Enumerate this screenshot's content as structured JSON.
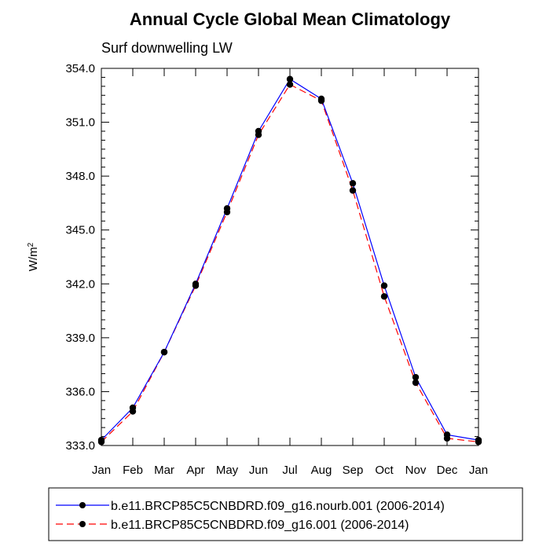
{
  "chart_data": {
    "type": "line",
    "title": "Annual Cycle Global Mean Climatology",
    "subtitle": "Surf downwelling LW",
    "xlabel": "",
    "ylabel": "W/m",
    "ylabel_superscript": "2",
    "ylim": [
      333.0,
      354.0
    ],
    "yticks": [
      "333.0",
      "336.0",
      "339.0",
      "342.0",
      "345.0",
      "348.0",
      "351.0",
      "354.0"
    ],
    "yticks_values": [
      333,
      336,
      339,
      342,
      345,
      348,
      351,
      354
    ],
    "categories": [
      "Jan",
      "Feb",
      "Mar",
      "Apr",
      "May",
      "Jun",
      "Jul",
      "Aug",
      "Sep",
      "Oct",
      "Nov",
      "Dec",
      "Jan"
    ],
    "grid": false,
    "legend_position": "bottom",
    "series": [
      {
        "name": "b.e11.BRCP85C5CNBDRD.f09_g16.nourb.001 (2006-2014)",
        "color": "#0000ff",
        "dash": "solid",
        "values": [
          333.3,
          335.1,
          338.2,
          342.0,
          346.2,
          350.5,
          353.4,
          352.3,
          347.6,
          341.9,
          336.8,
          333.6,
          333.3
        ]
      },
      {
        "name": "b.e11.BRCP85C5CNBDRD.f09_g16.001 (2006-2014)",
        "color": "#ff0000",
        "dash": "dashed",
        "values": [
          333.2,
          334.9,
          338.2,
          341.9,
          346.0,
          350.3,
          353.1,
          352.2,
          347.2,
          341.3,
          336.5,
          333.4,
          333.2
        ]
      }
    ]
  }
}
